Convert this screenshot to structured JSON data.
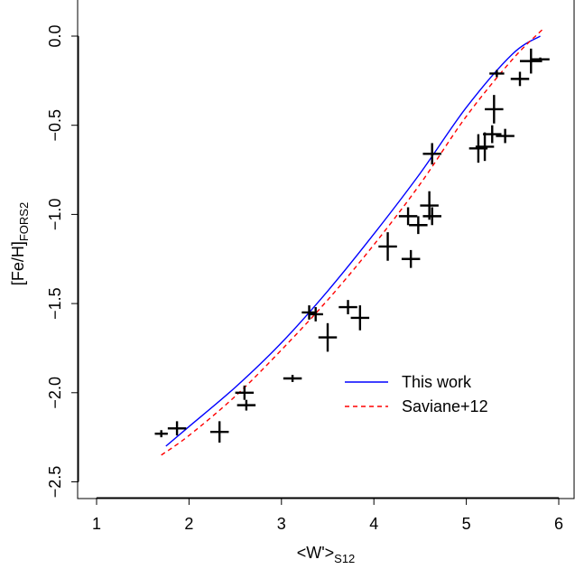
{
  "chart_data": {
    "type": "scatter",
    "xlabel": "<W'>",
    "xlabel_sub": "S12",
    "ylabel": "[Fe/H]",
    "ylabel_sub": "FORS2",
    "xlim": [
      1,
      6
    ],
    "ylim": [
      -2.5,
      0.0
    ],
    "x_ticks": [
      1,
      2,
      3,
      4,
      5,
      6
    ],
    "y_ticks": [
      -2.5,
      -2.0,
      -1.5,
      -1.0,
      -0.5,
      0.0
    ],
    "x_tick_labels": [
      "1",
      "2",
      "3",
      "4",
      "5",
      "6"
    ],
    "y_tick_labels": [
      "−2.5",
      "−2.0",
      "−1.5",
      "−1.0",
      "−0.5",
      "0.0"
    ],
    "grid": false,
    "legend_position": "bottom-right",
    "series": [
      {
        "name": "",
        "type": "errorbar",
        "color": "#000000",
        "points": [
          {
            "x": 1.7,
            "y": -2.23,
            "xerr": 0.07,
            "yerr": 0.02
          },
          {
            "x": 1.87,
            "y": -2.2,
            "xerr": 0.1,
            "yerr": 0.04
          },
          {
            "x": 2.33,
            "y": -2.22,
            "xerr": 0.1,
            "yerr": 0.06
          },
          {
            "x": 2.6,
            "y": -2.0,
            "xerr": 0.1,
            "yerr": 0.04
          },
          {
            "x": 2.62,
            "y": -2.07,
            "xerr": 0.1,
            "yerr": 0.03
          },
          {
            "x": 3.12,
            "y": -1.92,
            "xerr": 0.1,
            "yerr": 0.02
          },
          {
            "x": 3.3,
            "y": -1.55,
            "xerr": 0.08,
            "yerr": 0.04
          },
          {
            "x": 3.37,
            "y": -1.56,
            "xerr": 0.08,
            "yerr": 0.04
          },
          {
            "x": 3.5,
            "y": -1.69,
            "xerr": 0.1,
            "yerr": 0.08
          },
          {
            "x": 3.72,
            "y": -1.52,
            "xerr": 0.1,
            "yerr": 0.04
          },
          {
            "x": 3.85,
            "y": -1.58,
            "xerr": 0.1,
            "yerr": 0.07
          },
          {
            "x": 4.15,
            "y": -1.18,
            "xerr": 0.1,
            "yerr": 0.08
          },
          {
            "x": 4.37,
            "y": -1.01,
            "xerr": 0.1,
            "yerr": 0.05
          },
          {
            "x": 4.4,
            "y": -1.25,
            "xerr": 0.1,
            "yerr": 0.05
          },
          {
            "x": 4.48,
            "y": -1.06,
            "xerr": 0.1,
            "yerr": 0.05
          },
          {
            "x": 4.6,
            "y": -0.95,
            "xerr": 0.1,
            "yerr": 0.08
          },
          {
            "x": 4.63,
            "y": -0.66,
            "xerr": 0.1,
            "yerr": 0.06
          },
          {
            "x": 4.63,
            "y": -1.01,
            "xerr": 0.1,
            "yerr": 0.05
          },
          {
            "x": 5.13,
            "y": -0.63,
            "xerr": 0.1,
            "yerr": 0.08
          },
          {
            "x": 5.2,
            "y": -0.62,
            "xerr": 0.1,
            "yerr": 0.08
          },
          {
            "x": 5.28,
            "y": -0.55,
            "xerr": 0.1,
            "yerr": 0.05
          },
          {
            "x": 5.3,
            "y": -0.41,
            "xerr": 0.1,
            "yerr": 0.08
          },
          {
            "x": 5.33,
            "y": -0.21,
            "xerr": 0.08,
            "yerr": 0.02
          },
          {
            "x": 5.42,
            "y": -0.56,
            "xerr": 0.1,
            "yerr": 0.04
          },
          {
            "x": 5.58,
            "y": -0.24,
            "xerr": 0.1,
            "yerr": 0.04
          },
          {
            "x": 5.7,
            "y": -0.14,
            "xerr": 0.12,
            "yerr": 0.07
          },
          {
            "x": 5.8,
            "y": -0.13,
            "xerr": 0.1,
            "yerr": 0.01
          }
        ]
      },
      {
        "name": "This work",
        "type": "line",
        "color": "#0000ff",
        "dash": "solid",
        "x": [
          1.75,
          2.0,
          2.5,
          3.0,
          3.5,
          4.0,
          4.5,
          5.0,
          5.5,
          5.8
        ],
        "y": [
          -2.3,
          -2.19,
          -1.97,
          -1.72,
          -1.43,
          -1.11,
          -0.77,
          -0.4,
          -0.1,
          0.0
        ]
      },
      {
        "name": "Saviane+12",
        "type": "line",
        "color": "#ff0000",
        "dash": "dashed",
        "x": [
          1.7,
          2.0,
          2.5,
          3.0,
          3.5,
          4.0,
          4.5,
          5.0,
          5.5,
          5.83
        ],
        "y": [
          -2.35,
          -2.24,
          -2.02,
          -1.76,
          -1.48,
          -1.17,
          -0.83,
          -0.45,
          -0.13,
          0.04
        ]
      }
    ]
  }
}
